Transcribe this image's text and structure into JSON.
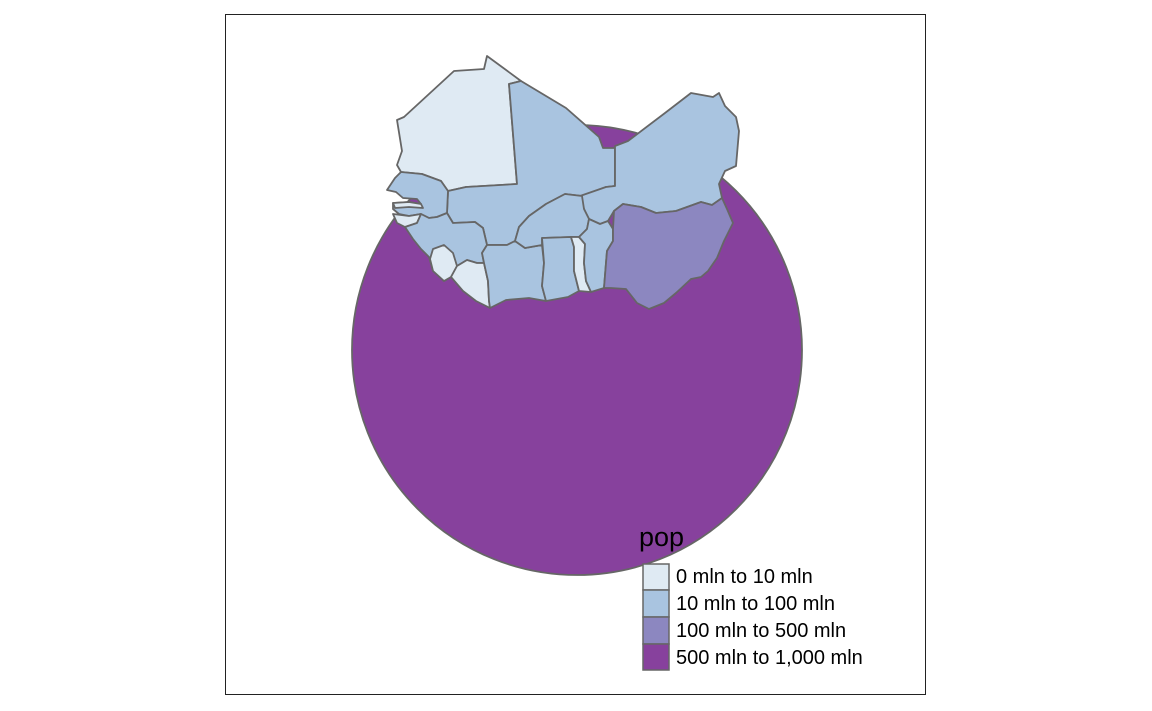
{
  "map": {
    "legend": {
      "title": "pop",
      "items": [
        {
          "label": "0 mln to 10 mln",
          "color": "#dfeaf3"
        },
        {
          "label": "10 mln to 100 mln",
          "color": "#a9c4e0"
        },
        {
          "label": "100 mln to 500 mln",
          "color": "#8c87c0"
        },
        {
          "label": "500 mln to 1,000 mln",
          "color": "#87419d"
        }
      ]
    },
    "regions": [
      {
        "name": "Sea buffer",
        "class": "500 mln to 1,000 mln"
      },
      {
        "name": "Mauritania",
        "class": "0 mln to 10 mln"
      },
      {
        "name": "Mali",
        "class": "10 mln to 100 mln"
      },
      {
        "name": "Niger",
        "class": "10 mln to 100 mln"
      },
      {
        "name": "Senegal",
        "class": "10 mln to 100 mln"
      },
      {
        "name": "Gambia",
        "class": "0 mln to 10 mln"
      },
      {
        "name": "Guinea-Bissau",
        "class": "0 mln to 10 mln"
      },
      {
        "name": "Guinea",
        "class": "10 mln to 100 mln"
      },
      {
        "name": "Sierra Leone",
        "class": "0 mln to 10 mln"
      },
      {
        "name": "Liberia",
        "class": "0 mln to 10 mln"
      },
      {
        "name": "Cote d'Ivoire",
        "class": "10 mln to 100 mln"
      },
      {
        "name": "Burkina Faso",
        "class": "10 mln to 100 mln"
      },
      {
        "name": "Ghana",
        "class": "10 mln to 100 mln"
      },
      {
        "name": "Togo",
        "class": "0 mln to 10 mln"
      },
      {
        "name": "Benin",
        "class": "10 mln to 100 mln"
      },
      {
        "name": "Nigeria",
        "class": "100 mln to 500 mln"
      }
    ]
  }
}
